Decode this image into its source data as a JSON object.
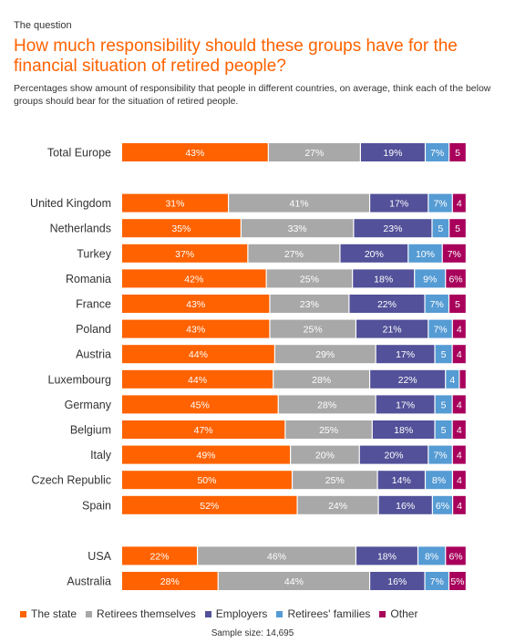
{
  "header": {
    "kicker": "The question",
    "title": "How much responsibility should these groups have for the financial situation of retired people?",
    "subtitle": "Percentages show amount of responsibility that people in different countries, on average, think each of the below groups should bear for the situation of retired people."
  },
  "footer": {
    "sample": "Sample size: 14,695"
  },
  "colors": {
    "The state": "#ff6200",
    "Retirees themselves": "#a8a8a8",
    "Employers": "#525199",
    "Retirees' families": "#559bd4",
    "Other": "#a8005b"
  },
  "chart_data": {
    "type": "bar",
    "orientation": "horizontal",
    "stacked": true,
    "xlim": [
      0,
      100
    ],
    "grid": false,
    "legend_position": "bottom",
    "categories": [
      "Total Europe",
      "United Kingdom",
      "Netherlands",
      "Turkey",
      "Romania",
      "France",
      "Poland",
      "Austria",
      "Luxembourg",
      "Germany",
      "Belgium",
      "Italy",
      "Czech Republic",
      "Spain",
      "USA",
      "Australia"
    ],
    "groups": [
      [
        "Total Europe"
      ],
      [
        "United Kingdom",
        "Netherlands",
        "Turkey",
        "Romania",
        "France",
        "Poland",
        "Austria",
        "Luxembourg",
        "Germany",
        "Belgium",
        "Italy",
        "Czech Republic",
        "Spain"
      ],
      [
        "USA",
        "Australia"
      ]
    ],
    "series": [
      {
        "name": "The state",
        "values": [
          43,
          31,
          35,
          37,
          42,
          43,
          43,
          44,
          44,
          45,
          47,
          49,
          50,
          52,
          22,
          28
        ],
        "labels": [
          "43%",
          "31%",
          "35%",
          "37%",
          "42%",
          "43%",
          "43%",
          "44%",
          "44%",
          "45%",
          "47%",
          "49%",
          "50%",
          "52%",
          "22%",
          "28%"
        ]
      },
      {
        "name": "Retirees themselves",
        "values": [
          27,
          41,
          33,
          27,
          25,
          23,
          25,
          29,
          28,
          28,
          25,
          20,
          25,
          24,
          46,
          44
        ],
        "labels": [
          "27%",
          "41%",
          "33%",
          "27%",
          "25%",
          "23%",
          "25%",
          "29%",
          "28%",
          "28%",
          "25%",
          "20%",
          "25%",
          "24%",
          "46%",
          "44%"
        ]
      },
      {
        "name": "Employers",
        "values": [
          19,
          17,
          23,
          20,
          18,
          22,
          21,
          17,
          22,
          17,
          18,
          20,
          14,
          16,
          18,
          16
        ],
        "labels": [
          "19%",
          "17%",
          "23%",
          "20%",
          "18%",
          "22%",
          "21%",
          "17%",
          "22%",
          "17%",
          "18%",
          "20%",
          "14%",
          "16%",
          "18%",
          "16%"
        ]
      },
      {
        "name": "Retirees' families",
        "values": [
          7,
          7,
          5,
          10,
          9,
          7,
          7,
          5,
          4,
          5,
          5,
          7,
          8,
          6,
          8,
          7
        ],
        "labels": [
          "7%",
          "7%",
          "5",
          "10%",
          "9%",
          "7%",
          "7%",
          "5",
          "4",
          "5",
          "5",
          "7%",
          "8%",
          "6%",
          "8%",
          "7%"
        ]
      },
      {
        "name": "Other",
        "values": [
          5,
          4,
          5,
          7,
          6,
          5,
          4,
          4,
          2,
          4,
          4,
          4,
          4,
          4,
          6,
          5
        ],
        "labels": [
          "5",
          "4",
          "5",
          "7%",
          "6%",
          "5",
          "4",
          "4",
          "",
          "4",
          "4",
          "4",
          "4",
          "4",
          "6%",
          "5%"
        ]
      }
    ]
  }
}
